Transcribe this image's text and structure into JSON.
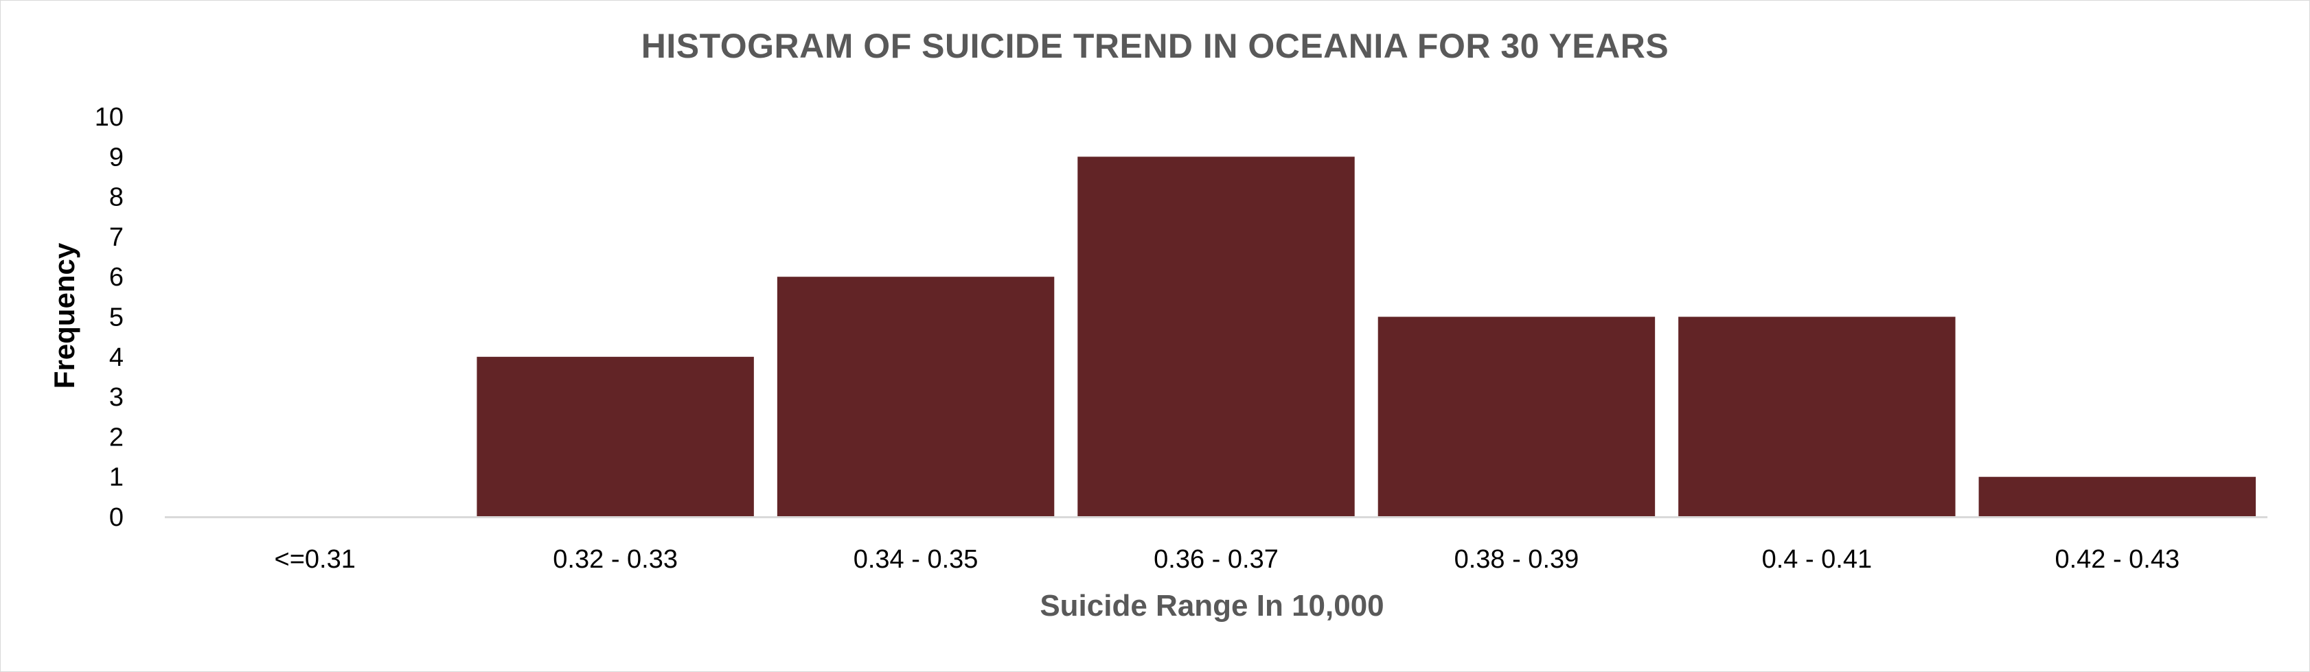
{
  "chart_data": {
    "type": "bar",
    "title": "HISTOGRAM OF SUICIDE TREND IN OCEANIA FOR 30 YEARS",
    "xlabel": "Suicide Range In 10,000",
    "ylabel": "Frequency",
    "categories": [
      "<=0.31",
      "0.32 - 0.33",
      "0.34 - 0.35",
      "0.36 - 0.37",
      "0.38 - 0.39",
      "0.4 - 0.41",
      "0.42 - 0.43"
    ],
    "values": [
      0,
      4,
      6,
      9,
      5,
      5,
      1
    ],
    "ylim": [
      0,
      10
    ],
    "yticks": [
      "0",
      "1",
      "2",
      "3",
      "4",
      "5",
      "6",
      "7",
      "8",
      "9",
      "10"
    ],
    "grid": false,
    "legend": "none",
    "bar_color": "#622426"
  }
}
